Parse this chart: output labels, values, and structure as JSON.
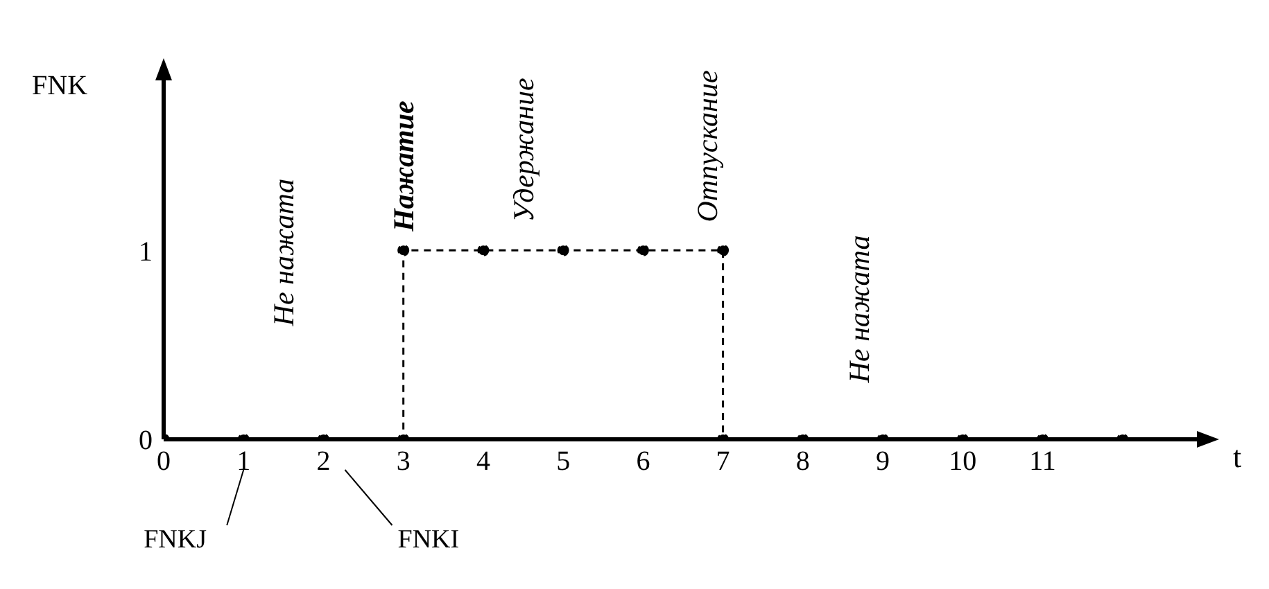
{
  "chart_data": {
    "type": "line",
    "xlabel": "t",
    "ylabel": "FNK",
    "x": [
      0,
      1,
      2,
      3,
      3,
      4,
      5,
      6,
      7,
      7,
      8,
      9,
      10,
      11,
      12
    ],
    "series": [
      {
        "color": "#000000",
        "values": [
          0,
          0,
          0,
          0,
          1,
          1,
          1,
          1,
          1,
          0,
          0,
          0,
          0,
          0,
          0
        ]
      }
    ],
    "xlim": [
      0,
      13
    ],
    "xticks": [
      0,
      1,
      2,
      3,
      4,
      5,
      6,
      7,
      8,
      9,
      10,
      11
    ],
    "ylim": [
      0,
      1.9
    ],
    "yticks": [
      0,
      1
    ],
    "marker": "circle",
    "line_style": "dashed",
    "annotations": [
      "Не нажата",
      "Нажатие",
      "Удержание",
      "Отпускание",
      "Не нажата",
      "FNKJ",
      "FNKI"
    ]
  }
}
